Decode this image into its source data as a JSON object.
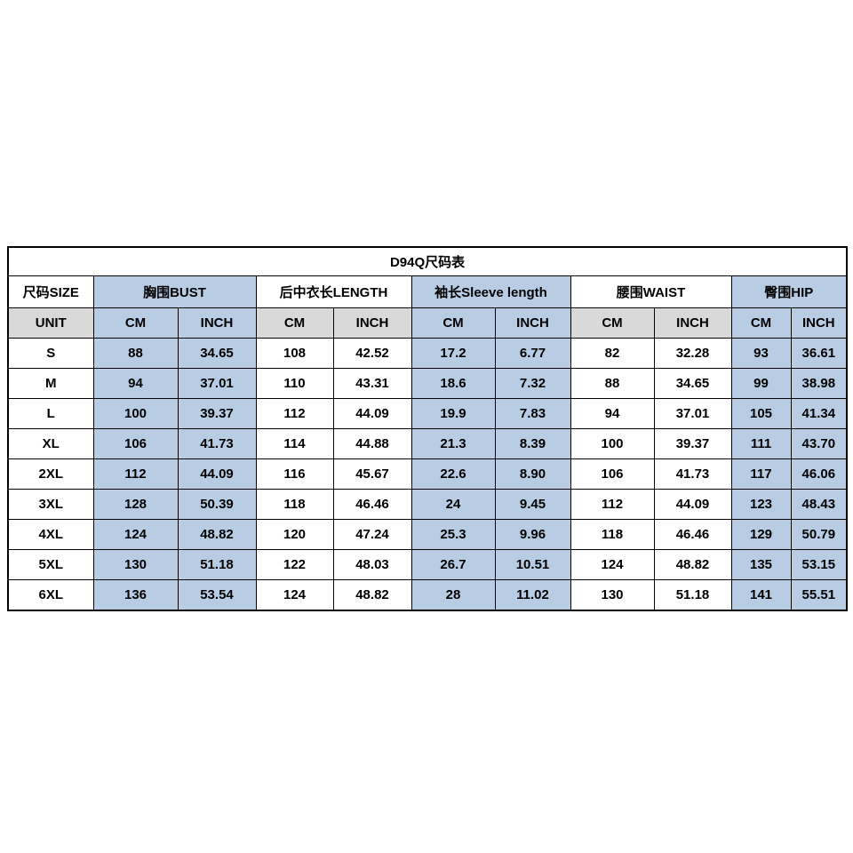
{
  "title": "D94Q尺码表",
  "colors": {
    "accent_blue": "#b8cce4",
    "accent_gray": "#d9d9d9",
    "border": "#000000",
    "background": "#ffffff"
  },
  "chart_data": {
    "type": "table",
    "title": "D94Q尺码表",
    "size_header": "尺码SIZE",
    "unit_label": "UNIT",
    "groups": [
      {
        "key": "bust",
        "label": "胸围BUST",
        "tint": "blue"
      },
      {
        "key": "length",
        "label": "后中衣长LENGTH",
        "tint": "white"
      },
      {
        "key": "sleeve",
        "label": "袖长Sleeve length",
        "tint": "blue"
      },
      {
        "key": "waist",
        "label": "腰围WAIST",
        "tint": "white"
      },
      {
        "key": "hip",
        "label": "臀围HIP",
        "tint": "blue"
      }
    ],
    "unit_cells": [
      "CM",
      "INCH",
      "CM",
      "INCH",
      "CM",
      "INCH",
      "CM",
      "INCH",
      "CM",
      "INCH"
    ],
    "rows": [
      {
        "size": "S",
        "values": [
          "88",
          "34.65",
          "108",
          "42.52",
          "17.2",
          "6.77",
          "82",
          "32.28",
          "93",
          "36.61"
        ]
      },
      {
        "size": "M",
        "values": [
          "94",
          "37.01",
          "110",
          "43.31",
          "18.6",
          "7.32",
          "88",
          "34.65",
          "99",
          "38.98"
        ]
      },
      {
        "size": "L",
        "values": [
          "100",
          "39.37",
          "112",
          "44.09",
          "19.9",
          "7.83",
          "94",
          "37.01",
          "105",
          "41.34"
        ]
      },
      {
        "size": "XL",
        "values": [
          "106",
          "41.73",
          "114",
          "44.88",
          "21.3",
          "8.39",
          "100",
          "39.37",
          "111",
          "43.70"
        ]
      },
      {
        "size": "2XL",
        "values": [
          "112",
          "44.09",
          "116",
          "45.67",
          "22.6",
          "8.90",
          "106",
          "41.73",
          "117",
          "46.06"
        ]
      },
      {
        "size": "3XL",
        "values": [
          "128",
          "50.39",
          "118",
          "46.46",
          "24",
          "9.45",
          "112",
          "44.09",
          "123",
          "48.43"
        ]
      },
      {
        "size": "4XL",
        "values": [
          "124",
          "48.82",
          "120",
          "47.24",
          "25.3",
          "9.96",
          "118",
          "46.46",
          "129",
          "50.79"
        ]
      },
      {
        "size": "5XL",
        "values": [
          "130",
          "51.18",
          "122",
          "48.03",
          "26.7",
          "10.51",
          "124",
          "48.82",
          "135",
          "53.15"
        ]
      },
      {
        "size": "6XL",
        "values": [
          "136",
          "53.54",
          "124",
          "48.82",
          "28",
          "11.02",
          "130",
          "51.18",
          "141",
          "55.51"
        ]
      }
    ]
  }
}
